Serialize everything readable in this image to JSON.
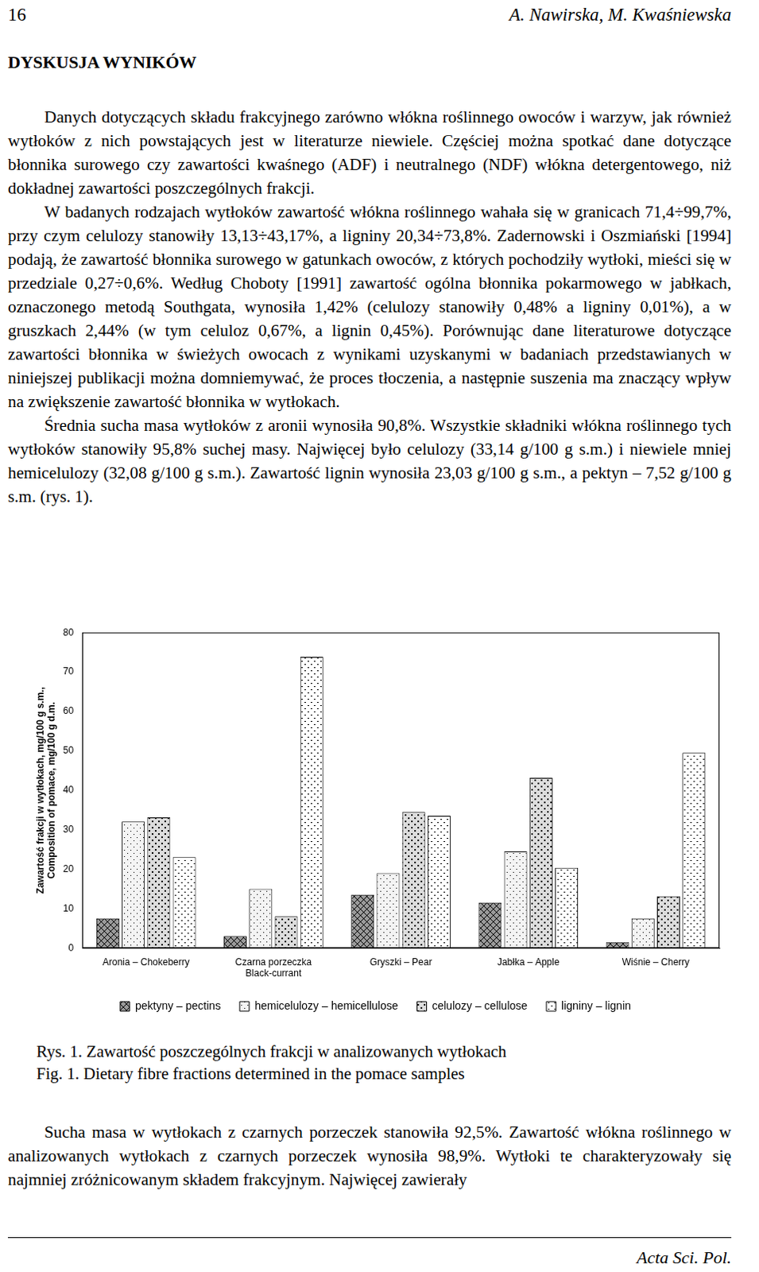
{
  "header": {
    "page_number": "16",
    "authors": "A. Nawirska, M. Kwaśniewska"
  },
  "section_title": "DYSKUSJA WYNIKÓW",
  "paragraphs_before": [
    "Danych dotyczących składu frakcyjnego zarówno włókna roślinnego owoców i warzyw, jak również wytłoków z nich powstających jest w literaturze niewiele. Częściej można spotkać dane dotyczące błonnika surowego czy zawartości kwaśnego (ADF) i neutralnego (NDF) włókna detergentowego, niż dokładnej zawartości poszczególnych frakcji.",
    "W badanych rodzajach wytłoków zawartość włókna roślinnego wahała się w granicach 71,4÷99,7%, przy czym celulozy stanowiły 13,13÷43,17%, a ligniny 20,34÷73,8%. Zadernowski i Oszmiański [1994] podają, że zawartość błonnika surowego w gatunkach owoców, z których pochodziły wytłoki, mieści się w przedziale 0,27÷0,6%. Według Choboty [1991] zawartość ogólna błonnika pokarmowego w jabłkach, oznaczonego metodą Southgata, wynosiła 1,42% (celulozy stanowiły 0,48% a ligniny 0,01%), a w gruszkach 2,44% (w tym celuloz 0,67%, a lignin 0,45%). Porównując dane literaturowe dotyczące zawartości błonnika w świeżych owocach z wynikami uzyskanymi w badaniach przedstawianych w niniejszej publikacji można domniemywać, że proces tłoczenia, a następnie suszenia ma znaczący wpływ na zwiększenie zawartość błonnika w wytłokach.",
    "Średnia sucha masa wytłoków z aronii wynosiła 90,8%. Wszystkie składniki włókna roślinnego tych wytłoków stanowiły 95,8% suchej masy. Najwięcej było celulozy (33,14 g/100 g s.m.) i niewiele mniej hemicelulozy (32,08 g/100 g s.m.). Zawartość lignin wynosiła 23,03 g/100 g s.m., a pektyn – 7,52 g/100 g s.m. (rys. 1)."
  ],
  "chart_data": {
    "type": "bar",
    "y_label": [
      "Zawartość frakcji w wytłokach, mg/100 g s.m.,",
      "Composition of pomace, mg/100 g d.m."
    ],
    "categories": [
      "Aronia – Chokeberry",
      [
        "Czarna porzeczka",
        "Black-currant"
      ],
      "Gryszki – Pear",
      "Jabłka – Apple",
      "Wiśnie – Cherry"
    ],
    "series": [
      {
        "name": "pektyny – pectins",
        "color": "#9a9a9a",
        "values": [
          7.52,
          3,
          13.5,
          11.5,
          1.5
        ]
      },
      {
        "name": "hemicelulozy – hemicellulose",
        "color": "#f4f4f4",
        "values": [
          32.08,
          15,
          19,
          24.5,
          7.5
        ]
      },
      {
        "name": "celulozy – cellulose",
        "color": "#dcdcdc",
        "values": [
          33.14,
          8,
          34.5,
          43.17,
          13.13
        ]
      },
      {
        "name": "ligniny – lignin",
        "color": "#ffffff",
        "values": [
          23.03,
          73.8,
          33.5,
          20.34,
          49.5
        ]
      }
    ],
    "ylim": [
      0,
      80
    ],
    "yticks": [
      0,
      10,
      20,
      30,
      40,
      50,
      60,
      70,
      80
    ],
    "grid": false,
    "legend": "bottom"
  },
  "caption": [
    "Rys. 1. Zawartość poszczególnych frakcji w analizowanych wytłokach",
    "Fig. 1. Dietary fibre fractions determined in the pomace samples"
  ],
  "paragraphs_after": [
    "Sucha masa w wytłokach z czarnych porzeczek stanowiła 92,5%. Zawartość włókna roślinnego w analizowanych wytłokach z czarnych porzeczek wynosiła 98,9%. Wytłoki te charakteryzowały się najmniej zróżnicowanym składem frakcyjnym. Najwięcej zawierały"
  ],
  "footer": "Acta Sci. Pol."
}
